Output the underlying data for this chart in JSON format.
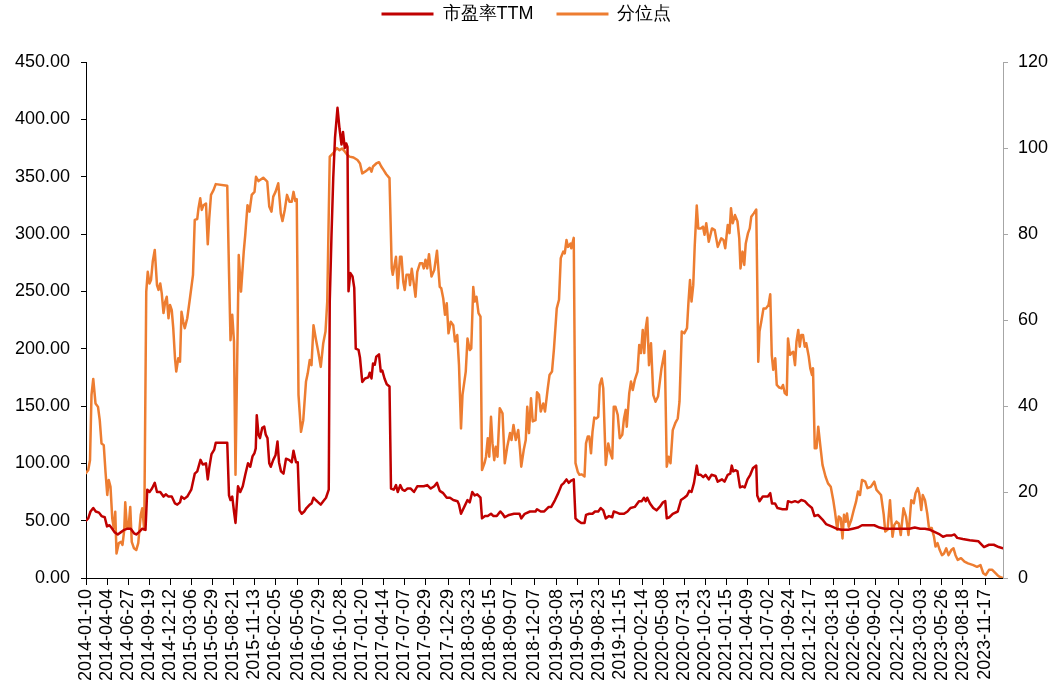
{
  "chart_data": {
    "type": "line",
    "legend": "top",
    "xlim": [
      "2014-01-10",
      "2024-01-26"
    ],
    "xticks": [
      "2014-01-10",
      "2014-04-04",
      "2014-06-27",
      "2014-09-19",
      "2014-12-12",
      "2015-03-06",
      "2015-05-29",
      "2015-08-21",
      "2015-11-13",
      "2016-02-05",
      "2016-05-06",
      "2016-07-29",
      "2016-10-28",
      "2017-01-20",
      "2017-04-14",
      "2017-07-07",
      "2017-09-29",
      "2017-12-29",
      "2018-03-23",
      "2018-06-15",
      "2018-09-07",
      "2018-12-07",
      "2019-03-08",
      "2019-05-31",
      "2019-08-23",
      "2019-11-15",
      "2020-02-14",
      "2020-05-08",
      "2020-07-31",
      "2020-10-23",
      "2021-01-15",
      "2021-04-09",
      "2021-07-02",
      "2021-09-24",
      "2021-12-17",
      "2022-03-18",
      "2022-06-10",
      "2022-09-02",
      "2022-12-02",
      "2023-03-03",
      "2023-05-26",
      "2023-08-18",
      "2023-11-17"
    ],
    "ylim": [
      0,
      450
    ],
    "yticks": [
      {
        "value": 0,
        "label": "0.00"
      },
      {
        "value": 50,
        "label": "50.00"
      },
      {
        "value": 100,
        "label": "100.00"
      },
      {
        "value": 150,
        "label": "150.00"
      },
      {
        "value": 200,
        "label": "200.00"
      },
      {
        "value": 250,
        "label": "250.00"
      },
      {
        "value": 300,
        "label": "300.00"
      },
      {
        "value": 350,
        "label": "350.00"
      },
      {
        "value": 400,
        "label": "400.00"
      },
      {
        "value": 450,
        "label": "450.00"
      }
    ],
    "y2lim": [
      0,
      120
    ],
    "y2ticks": [
      0,
      20,
      40,
      60,
      80,
      100,
      120
    ],
    "series": [
      {
        "name": "市盈率TTM",
        "color": "#c00000",
        "x": [
          "2014-01-10",
          "2014-01-19",
          "2014-01-28",
          "2014-02-08",
          "2014-02-18",
          "2014-03-03",
          "2014-03-13",
          "2014-03-26",
          "2014-04-04",
          "2014-04-14",
          "2014-04-25",
          "2014-05-04",
          "2014-05-17",
          "2014-05-30",
          "2014-06-12",
          "2014-06-25",
          "2014-07-08",
          "2014-07-21",
          "2014-07-30",
          "2014-08-10",
          "2014-08-23",
          "2014-09-05",
          "2014-09-12",
          "2014-09-21",
          "2014-10-01",
          "2014-10-12",
          "2014-10-21",
          "2014-11-03",
          "2014-11-16",
          "2014-11-25",
          "2014-12-06",
          "2014-12-19",
          "2015-01-01",
          "2015-01-10",
          "2015-01-21",
          "2015-01-27",
          "2015-02-07",
          "2015-02-19",
          "2015-03-07",
          "2015-03-21",
          "2015-03-31",
          "2015-04-13",
          "2015-04-22",
          "2015-05-05",
          "2015-05-12",
          "2015-05-18",
          "2015-05-27",
          "2015-06-07",
          "2015-06-13",
          "2015-07-29",
          "2015-08-05",
          "2015-08-11",
          "2015-08-18",
          "2015-08-25",
          "2015-08-31",
          "2015-09-10",
          "2015-09-19",
          "2015-09-29",
          "2015-10-09",
          "2015-10-20",
          "2015-10-29",
          "2015-11-07",
          "2015-11-15",
          "2015-11-20",
          "2015-11-24",
          "2015-12-01",
          "2015-12-07",
          "2015-12-16",
          "2015-12-24",
          "2015-12-30",
          "2016-01-06",
          "2016-01-13",
          "2016-01-19",
          "2016-01-29",
          "2016-02-07",
          "2016-02-15",
          "2016-02-21",
          "2016-02-29",
          "2016-03-10",
          "2016-03-20",
          "2016-04-01",
          "2016-04-12",
          "2016-04-19",
          "2016-04-29",
          "2016-05-06",
          "2016-05-13",
          "2016-05-22",
          "2016-06-01",
          "2016-06-10",
          "2016-06-23",
          "2016-06-30",
          "2016-07-08",
          "2016-07-17",
          "2016-07-27",
          "2016-08-06",
          "2016-08-16",
          "2016-08-27",
          "2016-09-07",
          "2016-09-11",
          "2016-09-18",
          "2016-09-25",
          "2016-10-02",
          "2016-10-12",
          "2016-10-20",
          "2016-10-28",
          "2016-11-03",
          "2016-11-10",
          "2016-11-16",
          "2016-11-21",
          "2016-11-25",
          "2016-12-02",
          "2016-12-11",
          "2016-12-18",
          "2016-12-24",
          "2017-01-04",
          "2017-01-10",
          "2017-01-19",
          "2017-01-30",
          "2017-02-12",
          "2017-02-18",
          "2017-02-25",
          "2017-03-03",
          "2017-03-10",
          "2017-03-16",
          "2017-03-27",
          "2017-04-03",
          "2017-04-09",
          "2017-04-18",
          "2017-04-27",
          "2017-05-08",
          "2017-05-14",
          "2017-05-25",
          "2017-06-03",
          "2017-06-10",
          "2017-06-20",
          "2017-06-29",
          "2017-07-08",
          "2017-07-19",
          "2017-08-01",
          "2017-08-14",
          "2017-08-27",
          "2017-09-09",
          "2017-09-22",
          "2017-10-06",
          "2017-10-20",
          "2017-11-03",
          "2017-11-14",
          "2017-11-25",
          "2017-12-09",
          "2017-12-23",
          "2018-01-05",
          "2018-01-18",
          "2018-02-04",
          "2018-02-10",
          "2018-02-18",
          "2018-03-03",
          "2018-03-16",
          "2018-03-25",
          "2018-04-04",
          "2018-04-14",
          "2018-04-24",
          "2018-05-07",
          "2018-05-13",
          "2018-05-25",
          "2018-06-05",
          "2018-06-18",
          "2018-06-28",
          "2018-07-11",
          "2018-07-25",
          "2018-08-03",
          "2018-08-12",
          "2018-08-29",
          "2018-09-18",
          "2018-10-10",
          "2018-10-17",
          "2018-10-31",
          "2018-11-21",
          "2018-12-13",
          "2018-12-19",
          "2019-01-03",
          "2019-01-17",
          "2019-02-04",
          "2019-02-14",
          "2019-03-01",
          "2019-03-14",
          "2019-03-27",
          "2019-04-06",
          "2019-04-16",
          "2019-04-25",
          "2019-05-05",
          "2019-05-15",
          "2019-05-22",
          "2019-05-31",
          "2019-06-14",
          "2019-06-27",
          "2019-07-03",
          "2019-07-16",
          "2019-07-29",
          "2019-08-08",
          "2019-08-21",
          "2019-08-31",
          "2019-09-10",
          "2019-09-20",
          "2019-10-03",
          "2019-10-16",
          "2019-10-22",
          "2019-11-04",
          "2019-11-15",
          "2019-12-02",
          "2019-12-16",
          "2019-12-28",
          "2020-01-14",
          "2020-01-31",
          "2020-02-11",
          "2020-02-20",
          "2020-02-27",
          "2020-03-04",
          "2020-03-15",
          "2020-03-28",
          "2020-04-10",
          "2020-04-23",
          "2020-05-06",
          "2020-05-15",
          "2020-05-21",
          "2020-06-01",
          "2020-06-14",
          "2020-07-04",
          "2020-07-17",
          "2020-07-30",
          "2020-08-10",
          "2020-08-19",
          "2020-08-28",
          "2020-09-07",
          "2020-09-18",
          "2020-09-24",
          "2020-10-04",
          "2020-10-14",
          "2020-10-23",
          "2020-11-05",
          "2020-11-16",
          "2020-12-02",
          "2020-12-11",
          "2020-12-28",
          "2021-01-07",
          "2021-01-20",
          "2021-01-30",
          "2021-02-05",
          "2021-02-11",
          "2021-02-21",
          "2021-02-28",
          "2021-03-10",
          "2021-03-20",
          "2021-03-29",
          "2021-04-09",
          "2021-04-20",
          "2021-05-01",
          "2021-05-14",
          "2021-05-18",
          "2021-05-27",
          "2021-06-09",
          "2021-06-29",
          "2021-07-09",
          "2021-07-16",
          "2021-07-28",
          "2021-08-07",
          "2021-08-27",
          "2021-09-13",
          "2021-09-18",
          "2021-10-02",
          "2021-10-16",
          "2021-10-29",
          "2021-11-10",
          "2021-11-24",
          "2021-12-07",
          "2021-12-23",
          "2022-01-02",
          "2022-01-16",
          "2022-02-03",
          "2022-02-17",
          "2022-03-11",
          "2022-03-31",
          "2022-04-20",
          "2022-05-16",
          "2022-06-04",
          "2022-06-24",
          "2022-07-11",
          "2022-07-27",
          "2022-08-29",
          "2022-09-19",
          "2022-10-10",
          "2022-10-31",
          "2022-11-28",
          "2022-12-27",
          "2023-01-17",
          "2023-02-07",
          "2023-03-01",
          "2023-03-20",
          "2023-04-09",
          "2023-04-29",
          "2023-05-18",
          "2023-05-31",
          "2023-06-13",
          "2023-07-03",
          "2023-07-16",
          "2023-07-27",
          "2023-08-18",
          "2023-09-15",
          "2023-10-20",
          "2023-11-11",
          "2023-12-01",
          "2023-12-20",
          "2024-01-09",
          "2024-01-26"
        ],
        "values": [
          50,
          52,
          58,
          61,
          58,
          57,
          54,
          53,
          45,
          46,
          43,
          40,
          38,
          40,
          42,
          43,
          43,
          39,
          38,
          40,
          43,
          42,
          77,
          75,
          78,
          83,
          75,
          75,
          71,
          73,
          71,
          71,
          65,
          64,
          66,
          71,
          69,
          71,
          77,
          91,
          93,
          103,
          99,
          100,
          86,
          96,
          108,
          112,
          118,
          118,
          72,
          68,
          71,
          58,
          48,
          80,
          75,
          80,
          90,
          100,
          97,
          106,
          109,
          113,
          142,
          125,
          122,
          131,
          132,
          125,
          122,
          100,
          97,
          103,
          107,
          119,
          101,
          93,
          91,
          104,
          103,
          101,
          111,
          101,
          101,
          59,
          56,
          58,
          61,
          64,
          65,
          70,
          68,
          66,
          64,
          67,
          70,
          77,
          241,
          299,
          349,
          384,
          410,
          392,
          378,
          389,
          375,
          379,
          376,
          250,
          266,
          263,
          253,
          200,
          199,
          192,
          171,
          174,
          175,
          179,
          174,
          187,
          186,
          193,
          195,
          180,
          181,
          174,
          169,
          167,
          78,
          77,
          81,
          75,
          81,
          77,
          76,
          78,
          78,
          75,
          80,
          80,
          80,
          81,
          78,
          80,
          83,
          76,
          74,
          70,
          70,
          68,
          67,
          64,
          56,
          62,
          68,
          66,
          75,
          72,
          73,
          70,
          52,
          54,
          54,
          56,
          54,
          54,
          58,
          56,
          53,
          55,
          56,
          56,
          52,
          56,
          58,
          58,
          60,
          58,
          58,
          62,
          62,
          68,
          74,
          81,
          83,
          86,
          83,
          85,
          86,
          52,
          50,
          48,
          48,
          55,
          56,
          56,
          58,
          58,
          61,
          59,
          52,
          54,
          53,
          58,
          57,
          56,
          56,
          58,
          61,
          62,
          67,
          67,
          70,
          67,
          70,
          65,
          61,
          59,
          62,
          66,
          67,
          52,
          53,
          56,
          58,
          68,
          70,
          72,
          76,
          75,
          83,
          98,
          90,
          90,
          88,
          90,
          86,
          90,
          89,
          84,
          86,
          84,
          90,
          91,
          98,
          93,
          94,
          93,
          79,
          80,
          79,
          86,
          90,
          96,
          98,
          72,
          67,
          71,
          71,
          74,
          65,
          65,
          61,
          60,
          60,
          67,
          66,
          67,
          66,
          68,
          67,
          64,
          61,
          54,
          55,
          51,
          47,
          45,
          43,
          42,
          42,
          43,
          44,
          46,
          46,
          46,
          44,
          43,
          43,
          43,
          43,
          43,
          44,
          43,
          43,
          42,
          40,
          38,
          36,
          37,
          37,
          38,
          35,
          34,
          33,
          32,
          27,
          29,
          29,
          27,
          26
        ]
      },
      {
        "name": "分位点",
        "color": "#ed7d31",
        "axis": "y2",
        "x": [
          "2014-01-10",
          "2014-01-19",
          "2014-01-26",
          "2014-02-01",
          "2014-02-08",
          "2014-02-17",
          "2014-02-27",
          "2014-03-06",
          "2014-03-13",
          "2014-03-22",
          "2014-03-29",
          "2014-04-05",
          "2014-04-11",
          "2014-04-18",
          "2014-04-25",
          "2014-05-01",
          "2014-05-07",
          "2014-05-12",
          "2014-05-21",
          "2014-05-30",
          "2014-06-05",
          "2014-06-12",
          "2014-06-16",
          "2014-06-23",
          "2014-06-29",
          "2014-07-06",
          "2014-07-12",
          "2014-07-21",
          "2014-07-30",
          "2014-08-07",
          "2014-08-17",
          "2014-08-23",
          "2014-08-31",
          "2014-09-08",
          "2014-09-14",
          "2014-09-21",
          "2014-09-27",
          "2014-10-04",
          "2014-10-12",
          "2014-10-21",
          "2014-10-27",
          "2014-11-03",
          "2014-11-09",
          "2014-11-16",
          "2014-11-23",
          "2014-11-29",
          "2014-12-06",
          "2014-12-12",
          "2014-12-19",
          "2014-12-25",
          "2015-01-01",
          "2015-01-06",
          "2015-01-14",
          "2015-01-21",
          "2015-01-27",
          "2015-02-03",
          "2015-02-09",
          "2015-02-19",
          "2015-03-01",
          "2015-03-14",
          "2015-03-21",
          "2015-03-31",
          "2015-04-05",
          "2015-04-12",
          "2015-04-18",
          "2015-04-25",
          "2015-05-05",
          "2015-05-12",
          "2015-05-18",
          "2015-05-25",
          "2015-06-04",
          "2015-06-13",
          "2015-07-29",
          "2015-08-05",
          "2015-08-11",
          "2015-08-18",
          "2015-08-25",
          "2015-08-31",
          "2015-09-13",
          "2015-09-22",
          "2015-10-03",
          "2015-10-09",
          "2015-10-18",
          "2015-10-26",
          "2015-11-04",
          "2015-11-15",
          "2015-11-21",
          "2015-12-01",
          "2015-12-20",
          "2016-01-05",
          "2016-01-13",
          "2016-01-22",
          "2016-01-29",
          "2016-02-07",
          "2016-02-18",
          "2016-02-28",
          "2016-03-06",
          "2016-03-15",
          "2016-03-24",
          "2016-04-03",
          "2016-04-12",
          "2016-04-19",
          "2016-04-26",
          "2016-05-02",
          "2016-05-09",
          "2016-05-19",
          "2016-05-28",
          "2016-06-08",
          "2016-06-15",
          "2016-06-23",
          "2016-06-30",
          "2016-07-08",
          "2016-07-17",
          "2016-07-27",
          "2016-08-06",
          "2016-08-16",
          "2016-08-25",
          "2016-09-01",
          "2016-09-11",
          "2016-09-25",
          "2016-10-09",
          "2016-10-20",
          "2016-10-30",
          "2016-11-10",
          "2016-11-19",
          "2016-11-29",
          "2016-12-15",
          "2016-12-31",
          "2017-01-10",
          "2017-01-19",
          "2017-01-30",
          "2017-02-08",
          "2017-02-18",
          "2017-02-25",
          "2017-03-03",
          "2017-03-16",
          "2017-03-27",
          "2017-04-05",
          "2017-04-14",
          "2017-04-25",
          "2017-05-08",
          "2017-05-17",
          "2017-05-21",
          "2017-06-03",
          "2017-06-10",
          "2017-06-19",
          "2017-06-25",
          "2017-07-02",
          "2017-07-08",
          "2017-07-15",
          "2017-07-25",
          "2017-07-29",
          "2017-08-05",
          "2017-08-14",
          "2017-08-20",
          "2017-08-27",
          "2017-09-07",
          "2017-09-16",
          "2017-09-22",
          "2017-09-29",
          "2017-10-06",
          "2017-10-13",
          "2017-10-23",
          "2017-11-03",
          "2017-11-14",
          "2017-11-25",
          "2017-12-01",
          "2017-12-09",
          "2017-12-16",
          "2017-12-23",
          "2017-12-30",
          "2018-01-08",
          "2018-01-18",
          "2018-01-25",
          "2018-02-03",
          "2018-02-10",
          "2018-02-18",
          "2018-02-24",
          "2018-03-09",
          "2018-03-16",
          "2018-03-25",
          "2018-03-31",
          "2018-04-08",
          "2018-04-14",
          "2018-04-21",
          "2018-04-29",
          "2018-05-07",
          "2018-05-13",
          "2018-05-23",
          "2018-05-29",
          "2018-06-05",
          "2018-06-11",
          "2018-06-18",
          "2018-06-24",
          "2018-07-01",
          "2018-07-07",
          "2018-07-14",
          "2018-07-23",
          "2018-08-03",
          "2018-08-12",
          "2018-08-22",
          "2018-09-02",
          "2018-09-08",
          "2018-09-16",
          "2018-09-25",
          "2018-10-05",
          "2018-10-12",
          "2018-10-17",
          "2018-10-27",
          "2018-11-04",
          "2018-11-10",
          "2018-11-17",
          "2018-11-25",
          "2018-12-02",
          "2018-12-13",
          "2018-12-19",
          "2018-12-27",
          "2019-01-03",
          "2019-01-13",
          "2019-01-20",
          "2019-01-31",
          "2019-02-07",
          "2019-02-17",
          "2019-02-25",
          "2019-03-08",
          "2019-03-17",
          "2019-03-24",
          "2019-04-03",
          "2019-04-09",
          "2019-04-16",
          "2019-04-22",
          "2019-05-02",
          "2019-05-05",
          "2019-05-15",
          "2019-05-22",
          "2019-05-31",
          "2019-06-07",
          "2019-06-16",
          "2019-06-27",
          "2019-07-03",
          "2019-07-10",
          "2019-07-16",
          "2019-07-23",
          "2019-07-29",
          "2019-08-05",
          "2019-08-14",
          "2019-08-21",
          "2019-08-27",
          "2019-09-04",
          "2019-09-10",
          "2019-09-20",
          "2019-09-30",
          "2019-10-09",
          "2019-10-16",
          "2019-10-22",
          "2019-10-29",
          "2019-11-07",
          "2019-11-15",
          "2019-11-25",
          "2019-12-02",
          "2019-12-09",
          "2019-12-13",
          "2019-12-23",
          "2019-12-30",
          "2020-01-06",
          "2020-01-14",
          "2020-01-25",
          "2020-02-01",
          "2020-02-08",
          "2020-02-15",
          "2020-02-21",
          "2020-02-27",
          "2020-03-04",
          "2020-03-11",
          "2020-03-19",
          "2020-03-28",
          "2020-04-06",
          "2020-04-16",
          "2020-04-30",
          "2020-05-13",
          "2020-05-21",
          "2020-05-28",
          "2020-06-05",
          "2020-06-14",
          "2020-06-24",
          "2020-07-04",
          "2020-07-11",
          "2020-07-20",
          "2020-07-30",
          "2020-08-10",
          "2020-08-16",
          "2020-08-22",
          "2020-08-28",
          "2020-09-04",
          "2020-09-10",
          "2020-09-18",
          "2020-09-24",
          "2020-10-04",
          "2020-10-13",
          "2020-10-19",
          "2020-10-26",
          "2020-11-05",
          "2020-11-18",
          "2020-11-29",
          "2020-12-11",
          "2020-12-25",
          "2021-01-03",
          "2021-01-10",
          "2021-01-20",
          "2021-01-27",
          "2021-02-02",
          "2021-02-09",
          "2021-02-18",
          "2021-02-28",
          "2021-03-07",
          "2021-03-12",
          "2021-03-20",
          "2021-03-27",
          "2021-04-02",
          "2021-04-11",
          "2021-04-18",
          "2021-04-24",
          "2021-05-04",
          "2021-05-14",
          "2021-05-18",
          "2021-05-22",
          "2021-05-27",
          "2021-06-03",
          "2021-06-12",
          "2021-06-22",
          "2021-07-02",
          "2021-07-09",
          "2021-07-15",
          "2021-07-21",
          "2021-07-29",
          "2021-08-04",
          "2021-08-14",
          "2021-08-23",
          "2021-08-29",
          "2021-09-05",
          "2021-09-13",
          "2021-09-18",
          "2021-09-26",
          "2021-10-02",
          "2021-10-09",
          "2021-10-16",
          "2021-10-22",
          "2021-10-29",
          "2021-11-04",
          "2021-11-10",
          "2021-11-17",
          "2021-11-24",
          "2021-11-30",
          "2021-12-10",
          "2021-12-16",
          "2021-12-23",
          "2021-12-27",
          "2022-01-03",
          "2022-01-10",
          "2022-01-17",
          "2022-01-25",
          "2022-02-03",
          "2022-02-15",
          "2022-02-25",
          "2022-03-08",
          "2022-03-18",
          "2022-03-25",
          "2022-04-03",
          "2022-04-09",
          "2022-04-17",
          "2022-04-24",
          "2022-04-30",
          "2022-05-07",
          "2022-05-12",
          "2022-05-19",
          "2022-05-29",
          "2022-06-08",
          "2022-06-17",
          "2022-06-25",
          "2022-07-03",
          "2022-07-11",
          "2022-07-24",
          "2022-08-02",
          "2022-08-15",
          "2022-08-29",
          "2022-09-07",
          "2022-09-19",
          "2022-09-25",
          "2022-10-06",
          "2022-10-12",
          "2022-10-21",
          "2022-10-31",
          "2022-11-10",
          "2022-11-17",
          "2022-11-26",
          "2022-12-05",
          "2022-12-13",
          "2022-12-24",
          "2023-01-03",
          "2023-01-13",
          "2023-01-24",
          "2023-02-03",
          "2023-02-10",
          "2023-02-19",
          "2023-02-25",
          "2023-03-05",
          "2023-03-11",
          "2023-03-20",
          "2023-03-29",
          "2023-04-05",
          "2023-04-16",
          "2023-04-25",
          "2023-05-01",
          "2023-05-09",
          "2023-05-18",
          "2023-05-27",
          "2023-06-04",
          "2023-06-13",
          "2023-06-22",
          "2023-07-03",
          "2023-07-12",
          "2023-07-20",
          "2023-07-29",
          "2023-08-11",
          "2023-08-25",
          "2023-09-08",
          "2023-09-29",
          "2023-10-14",
          "2023-10-28",
          "2023-11-08",
          "2023-11-18",
          "2023-12-01",
          "2023-12-14",
          "2023-12-24",
          "2024-01-03",
          "2024-01-12",
          "2024-01-26"
        ],
        "values": [
          24.4,
          25.1,
          27.4,
          42.6,
          46.3,
          40.6,
          39.8,
          36.7,
          31.3,
          30.9,
          24.7,
          19.3,
          22.8,
          21.2,
          13.9,
          11.6,
          15.4,
          5.7,
          8.1,
          8.4,
          7.7,
          11.2,
          17.6,
          11.6,
          11.6,
          16.5,
          8.4,
          6.9,
          6.5,
          8.1,
          14.7,
          16.2,
          11.2,
          66.6,
          71.2,
          68.5,
          69.3,
          73.6,
          76.3,
          68.1,
          67.0,
          68.5,
          66.2,
          61.6,
          64.3,
          65.4,
          60.4,
          63.5,
          62.3,
          58.1,
          51.1,
          48.0,
          51.1,
          50.3,
          61.9,
          59.6,
          58.1,
          60.4,
          64.7,
          70.5,
          83.3,
          83.5,
          86.0,
          88.3,
          85.6,
          86.7,
          87.1,
          77.6,
          83.7,
          89.1,
          90.2,
          91.6,
          91.2,
          71.2,
          55.3,
          61.2,
          55.0,
          24.0,
          75.1,
          66.6,
          75.9,
          79.8,
          86.7,
          85.2,
          89.1,
          89.8,
          93.3,
          92.3,
          93.1,
          92.2,
          86.4,
          85.2,
          88.7,
          89.8,
          91.8,
          84.8,
          83.0,
          85.6,
          89.1,
          87.5,
          87.5,
          89.8,
          87.7,
          88.1,
          42.6,
          34.0,
          36.7,
          45.7,
          47.6,
          50.7,
          49.5,
          58.8,
          55.7,
          52.6,
          49.1,
          54.6,
          57.3,
          64.3,
          98.0,
          98.8,
          100.0,
          99.5,
          99.9,
          99.2,
          98.5,
          98.0,
          97.8,
          97.2,
          96.4,
          94.1,
          94.5,
          94.9,
          95.4,
          94.5,
          95.7,
          96.4,
          96.7,
          95.7,
          94.9,
          93.9,
          93.0,
          72.0,
          70.5,
          74.7,
          67.4,
          74.7,
          74.7,
          68.9,
          67.0,
          70.5,
          70.5,
          68.1,
          71.9,
          68.1,
          65.4,
          71.2,
          73.2,
          73.2,
          72.0,
          74.0,
          72.0,
          75.3,
          70.1,
          71.6,
          76.1,
          67.7,
          67.4,
          65.0,
          61.2,
          63.9,
          56.9,
          59.6,
          58.8,
          55.0,
          56.5,
          49.5,
          34.8,
          42.6,
          48.0,
          55.7,
          53.0,
          53.4,
          67.7,
          64.3,
          65.4,
          61.6,
          60.8,
          25.1,
          26.7,
          28.2,
          32.5,
          28.2,
          37.5,
          31.3,
          27.4,
          30.5,
          28.2,
          39.5,
          38.3,
          26.7,
          30.5,
          33.7,
          32.1,
          35.6,
          32.1,
          34.4,
          29.8,
          25.9,
          29.8,
          32.1,
          39.8,
          33.7,
          41.8,
          36.4,
          36.7,
          43.2,
          42.6,
          38.7,
          40.6,
          38.7,
          44.1,
          47.2,
          48.0,
          53.4,
          62.7,
          64.7,
          74.4,
          75.9,
          75.5,
          78.6,
          77.0,
          77.8,
          76.7,
          79.1,
          26.7,
          24.7,
          24.0,
          24.1,
          23.6,
          31.3,
          32.9,
          32.9,
          29.0,
          34.0,
          37.3,
          37.1,
          37.5,
          44.9,
          46.4,
          44.1,
          26.3,
          31.3,
          29.0,
          27.8,
          39.8,
          39.8,
          37.9,
          32.5,
          33.3,
          37.1,
          39.1,
          35.2,
          43.0,
          45.7,
          43.7,
          46.0,
          48.0,
          54.2,
          52.3,
          57.7,
          52.3,
          58.1,
          60.5,
          49.5,
          54.6,
          42.6,
          41.0,
          42.2,
          48.8,
          52.8,
          25.9,
          28.2,
          26.7,
          34.4,
          36.0,
          37.1,
          41.0,
          57.3,
          56.9,
          58.1,
          64.3,
          69.3,
          64.3,
          68.1,
          77.4,
          86.6,
          81.3,
          81.3,
          81.7,
          79.8,
          82.5,
          78.2,
          81.3,
          80.9,
          77.0,
          79.0,
          78.6,
          76.7,
          82.1,
          80.2,
          86.0,
          82.5,
          84.4,
          82.9,
          79.0,
          72.0,
          75.9,
          72.8,
          77.8,
          80.2,
          81.3,
          84.0,
          84.8,
          85.7,
          68.9,
          50.3,
          57.3,
          59.6,
          62.7,
          62.7,
          63.5,
          66.0,
          51.9,
          48.4,
          51.1,
          44.9,
          44.3,
          44.1,
          44.9,
          43.0,
          42.6,
          55.7,
          51.9,
          52.3,
          52.6,
          49.5,
          55.0,
          57.7,
          53.8,
          56.5,
          56.5,
          53.8,
          54.6,
          51.5,
          48.8,
          47.2,
          48.8,
          30.2,
          30.2,
          35.2,
          30.9,
          26.3,
          23.6,
          22.0,
          21.2,
          18.1,
          15.4,
          11.2,
          14.3,
          13.9,
          9.2,
          14.7,
          13.1,
          15.0,
          11.9,
          13.5,
          15.8,
          17.7,
          20.1,
          19.3,
          22.8,
          22.4,
          20.9,
          21.2,
          22.4,
          20.5,
          19.7,
          19.3,
          14.7,
          10.8,
          11.2,
          18.1,
          9.6,
          12.3,
          13.1,
          12.7,
          10.0,
          16.2,
          14.3,
          10.0,
          18.1,
          17.4,
          19.7,
          20.9,
          19.7,
          15.8,
          19.3,
          18.1,
          15.0,
          11.6,
          11.6,
          9.6,
          7.3,
          8.1,
          6.5,
          5.3,
          5.7,
          6.9,
          5.3,
          6.5,
          6.9,
          5.3,
          4.2,
          4.6,
          3.8,
          3.4,
          3.0,
          2.6,
          3.0,
          1.1,
          0.7,
          1.9,
          1.9,
          1.3,
          0.7,
          0.3,
          0.0
        ]
      }
    ]
  }
}
